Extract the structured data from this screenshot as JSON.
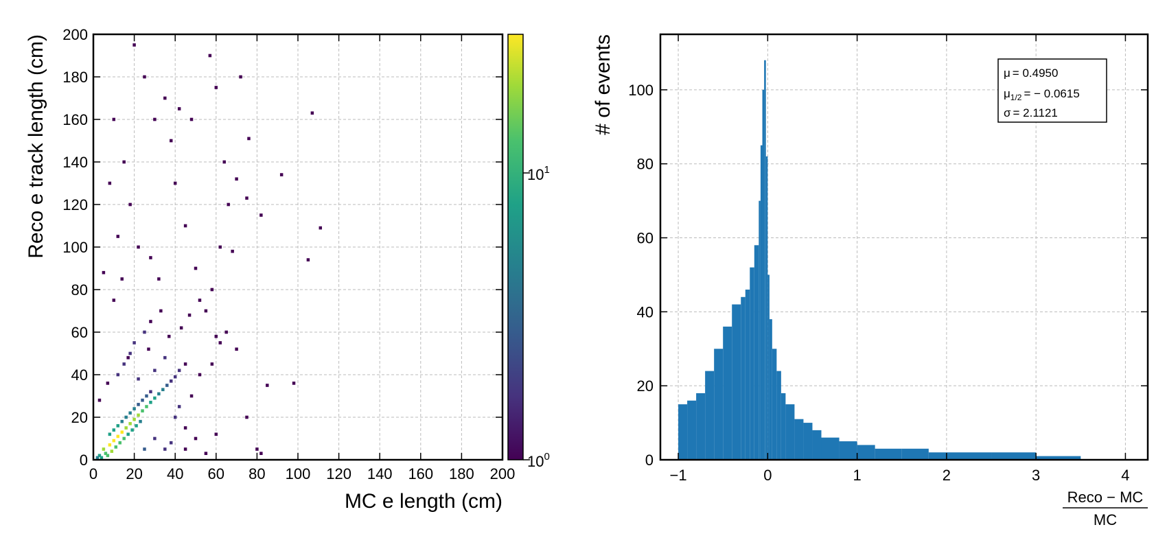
{
  "chart_data": [
    {
      "type": "heatmap",
      "xlabel": "MC e length (cm)",
      "ylabel": "Reco e track length (cm)",
      "xlim": [
        0,
        200
      ],
      "ylim": [
        0,
        200
      ],
      "x_ticks": [
        "0",
        "20",
        "40",
        "60",
        "80",
        "100",
        "120",
        "140",
        "160",
        "180",
        "200"
      ],
      "y_ticks": [
        "0",
        "20",
        "40",
        "60",
        "80",
        "100",
        "120",
        "140",
        "160",
        "180",
        "200"
      ],
      "grid": true,
      "colormap": "viridis",
      "colorbar": {
        "scale": "log",
        "range": [
          1,
          30
        ],
        "tick_labels": [
          {
            "base": "10",
            "exp": "0"
          },
          {
            "base": "10",
            "exp": "1"
          }
        ]
      },
      "points": [
        [
          5,
          5,
          20
        ],
        [
          8,
          7,
          25
        ],
        [
          10,
          9,
          30
        ],
        [
          12,
          11,
          28
        ],
        [
          14,
          13,
          25
        ],
        [
          16,
          15,
          22
        ],
        [
          18,
          17,
          20
        ],
        [
          20,
          19,
          18
        ],
        [
          22,
          21,
          15
        ],
        [
          24,
          23,
          12
        ],
        [
          26,
          25,
          10
        ],
        [
          28,
          27,
          8
        ],
        [
          30,
          29,
          6
        ],
        [
          32,
          31,
          5
        ],
        [
          34,
          33,
          4
        ],
        [
          36,
          35,
          3
        ],
        [
          38,
          37,
          2
        ],
        [
          40,
          39,
          2
        ],
        [
          42,
          42,
          2
        ],
        [
          45,
          45,
          1
        ],
        [
          6,
          3,
          12
        ],
        [
          7,
          2,
          10
        ],
        [
          9,
          4,
          15
        ],
        [
          11,
          6,
          14
        ],
        [
          13,
          8,
          12
        ],
        [
          15,
          10,
          10
        ],
        [
          17,
          12,
          8
        ],
        [
          19,
          14,
          7
        ],
        [
          21,
          16,
          6
        ],
        [
          23,
          18,
          5
        ],
        [
          3,
          2,
          8
        ],
        [
          4,
          1,
          6
        ],
        [
          2,
          1,
          4
        ],
        [
          8,
          12,
          8
        ],
        [
          10,
          14,
          7
        ],
        [
          12,
          16,
          6
        ],
        [
          14,
          18,
          5
        ],
        [
          16,
          20,
          5
        ],
        [
          18,
          22,
          4
        ],
        [
          20,
          24,
          4
        ],
        [
          22,
          26,
          3
        ],
        [
          24,
          28,
          3
        ],
        [
          26,
          30,
          3
        ],
        [
          28,
          32,
          2
        ],
        [
          12,
          40,
          2
        ],
        [
          15,
          45,
          2
        ],
        [
          18,
          50,
          2
        ],
        [
          20,
          55,
          2
        ],
        [
          25,
          60,
          2
        ],
        [
          22,
          38,
          2
        ],
        [
          30,
          42,
          2
        ],
        [
          35,
          48,
          2
        ],
        [
          28,
          65,
          1
        ],
        [
          33,
          70,
          1
        ],
        [
          10,
          75,
          1
        ],
        [
          14,
          85,
          1
        ],
        [
          40,
          20,
          2
        ],
        [
          42,
          25,
          2
        ],
        [
          45,
          15,
          1
        ],
        [
          50,
          10,
          1
        ],
        [
          38,
          8,
          2
        ],
        [
          35,
          5,
          2
        ],
        [
          30,
          10,
          2
        ],
        [
          25,
          5,
          3
        ],
        [
          45,
          5,
          1
        ],
        [
          55,
          3,
          1
        ],
        [
          60,
          12,
          1
        ],
        [
          48,
          30,
          1
        ],
        [
          52,
          40,
          1
        ],
        [
          58,
          45,
          1
        ],
        [
          62,
          55,
          1
        ],
        [
          65,
          60,
          1
        ],
        [
          70,
          52,
          1
        ],
        [
          75,
          20,
          1
        ],
        [
          80,
          5,
          1
        ],
        [
          82,
          3,
          1
        ],
        [
          85,
          35,
          1
        ],
        [
          98,
          36,
          1
        ],
        [
          92,
          134,
          1
        ],
        [
          107,
          163,
          1
        ],
        [
          111,
          109,
          1
        ],
        [
          105,
          94,
          1
        ],
        [
          76,
          151,
          1
        ],
        [
          70,
          132,
          1
        ],
        [
          72,
          180,
          1
        ],
        [
          75,
          123,
          1
        ],
        [
          82,
          115,
          1
        ],
        [
          68,
          98,
          1
        ],
        [
          60,
          58,
          1
        ],
        [
          55,
          70,
          1
        ],
        [
          50,
          90,
          1
        ],
        [
          45,
          110,
          1
        ],
        [
          40,
          130,
          1
        ],
        [
          38,
          150,
          1
        ],
        [
          35,
          170,
          1
        ],
        [
          20,
          195,
          1
        ],
        [
          25,
          180,
          1
        ],
        [
          30,
          160,
          1
        ],
        [
          15,
          140,
          1
        ],
        [
          18,
          120,
          1
        ],
        [
          22,
          100,
          1
        ],
        [
          28,
          95,
          1
        ],
        [
          32,
          85,
          1
        ],
        [
          12,
          105,
          1
        ],
        [
          8,
          130,
          1
        ],
        [
          5,
          88,
          1
        ],
        [
          10,
          160,
          1
        ],
        [
          42,
          165,
          1
        ],
        [
          48,
          160,
          1
        ],
        [
          57,
          190,
          1
        ],
        [
          60,
          175,
          1
        ],
        [
          64,
          140,
          1
        ],
        [
          66,
          120,
          1
        ],
        [
          62,
          100,
          1
        ],
        [
          58,
          80,
          1
        ],
        [
          52,
          75,
          1
        ],
        [
          47,
          68,
          1
        ],
        [
          43,
          62,
          1
        ],
        [
          37,
          58,
          1
        ],
        [
          27,
          52,
          1
        ],
        [
          17,
          48,
          1
        ],
        [
          7,
          36,
          1
        ],
        [
          3,
          28,
          1
        ]
      ]
    },
    {
      "type": "bar",
      "ylabel": "# of events",
      "xlabel": {
        "numerator": "Reco − MC",
        "denominator": "MC"
      },
      "xlim": [
        -1.2,
        4.25
      ],
      "ylim": [
        0,
        115
      ],
      "x_ticks": [
        "−1",
        "0",
        "1",
        "2",
        "3",
        "4"
      ],
      "y_ticks": [
        "0",
        "20",
        "40",
        "60",
        "80",
        "100"
      ],
      "grid": true,
      "bar_color": "#1f77b4",
      "x": [
        -1.0,
        -0.9,
        -0.8,
        -0.7,
        -0.6,
        -0.5,
        -0.4,
        -0.3,
        -0.25,
        -0.2,
        -0.15,
        -0.1,
        -0.08,
        -0.06,
        -0.04,
        -0.02,
        0.0,
        0.02,
        0.05,
        0.1,
        0.15,
        0.2,
        0.3,
        0.4,
        0.5,
        0.6,
        0.8,
        1.0,
        1.2,
        1.5,
        1.8,
        2.0,
        2.5,
        3.0,
        3.5,
        4.0
      ],
      "values": [
        0,
        15,
        16,
        18,
        24,
        30,
        36,
        42,
        44,
        46,
        52,
        58,
        70,
        85,
        100,
        108,
        82,
        50,
        38,
        30,
        24,
        18,
        15,
        11,
        10,
        8,
        6,
        5,
        4,
        3,
        3,
        2,
        2,
        2,
        1,
        0
      ],
      "stats": [
        {
          "symbol": "μ",
          "sub": "",
          "value": "= 0.4950"
        },
        {
          "symbol": "μ",
          "sub": "1/2",
          "value": "= − 0.0615"
        },
        {
          "symbol": "σ",
          "sub": "",
          "value": "= 2.1121"
        }
      ]
    }
  ]
}
